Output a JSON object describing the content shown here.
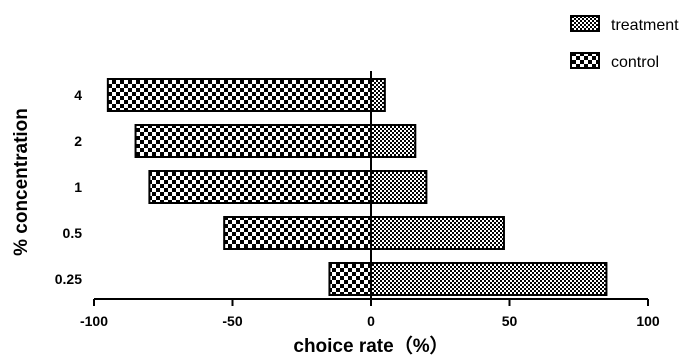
{
  "chart_data": {
    "type": "bar",
    "orientation": "horizontal",
    "categories": [
      "4",
      "2",
      "1",
      "0.5",
      "0.25"
    ],
    "series": [
      {
        "name": "control",
        "values": [
          -95,
          -85,
          -80,
          -53,
          -15
        ],
        "pattern": "checker-coarse"
      },
      {
        "name": "treatment",
        "values": [
          5,
          16,
          20,
          48,
          85
        ],
        "pattern": "checker-fine"
      }
    ],
    "xlabel": "choice rate（%）",
    "ylabel": "% concentration",
    "xlim": [
      -100,
      100
    ],
    "xticks": [
      "-100",
      "-50",
      "0",
      "50",
      "100"
    ],
    "grid": false,
    "legend_position": "top-right",
    "colors": {
      "ink": "#000000",
      "background": "#ffffff"
    }
  }
}
